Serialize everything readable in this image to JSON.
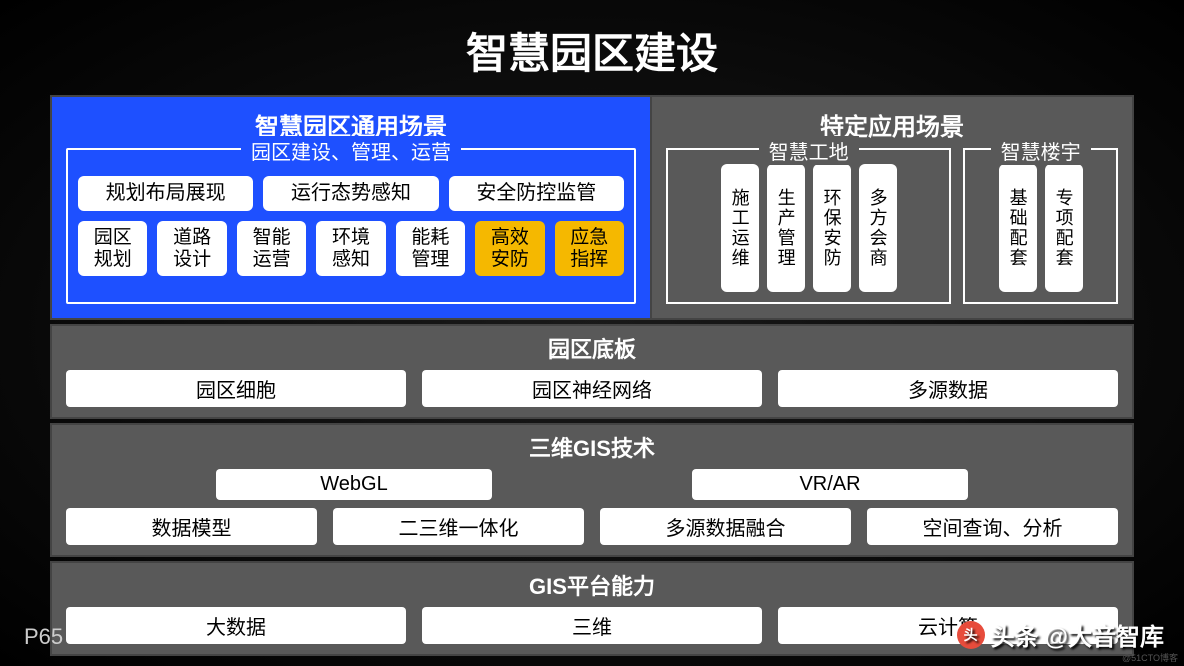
{
  "title": "智慧园区建设",
  "page_number": "P65",
  "watermark": {
    "prefix": "头条",
    "at": "@大音智库",
    "tiny": "@51CTO博客"
  },
  "colors": {
    "background": "#0a0a0a",
    "blue_panel": "#1e50ff",
    "gray_panel": "#595959",
    "pill_bg": "#ffffff",
    "pill_fg": "#000000",
    "orange": "#f5b800",
    "border": "#444444",
    "text": "#ffffff"
  },
  "top": {
    "left": {
      "title": "智慧园区通用场景",
      "group_label": "园区建设、管理、运营",
      "row1": [
        "规划布局展现",
        "运行态势感知",
        "安全防控监管"
      ],
      "row2": [
        {
          "label": "园区\n规划",
          "style": "white"
        },
        {
          "label": "道路\n设计",
          "style": "white"
        },
        {
          "label": "智能\n运营",
          "style": "white"
        },
        {
          "label": "环境\n感知",
          "style": "white"
        },
        {
          "label": "能耗\n管理",
          "style": "white"
        },
        {
          "label": "高效\n安防",
          "style": "orange"
        },
        {
          "label": "应急\n指挥",
          "style": "orange"
        }
      ]
    },
    "right": {
      "title": "特定应用场景",
      "groups": [
        {
          "label": "智慧工地",
          "items": [
            "施工运维",
            "生产管理",
            "环保安防",
            "多方会商"
          ]
        },
        {
          "label": "智慧楼宇",
          "items": [
            "基础配套",
            "专项配套"
          ]
        }
      ]
    }
  },
  "layers": [
    {
      "title": "园区底板",
      "rows": [
        [
          "园区细胞",
          "园区神经网络",
          "多源数据"
        ]
      ]
    },
    {
      "title": "三维GIS技术",
      "rows": [
        [
          "WebGL",
          "VR/AR"
        ],
        [
          "数据模型",
          "二三维一体化",
          "多源数据融合",
          "空间查询、分析"
        ]
      ],
      "row0_style": "narrow"
    },
    {
      "title": "GIS平台能力",
      "rows": [
        [
          "大数据",
          "三维",
          "云计算"
        ]
      ]
    }
  ]
}
